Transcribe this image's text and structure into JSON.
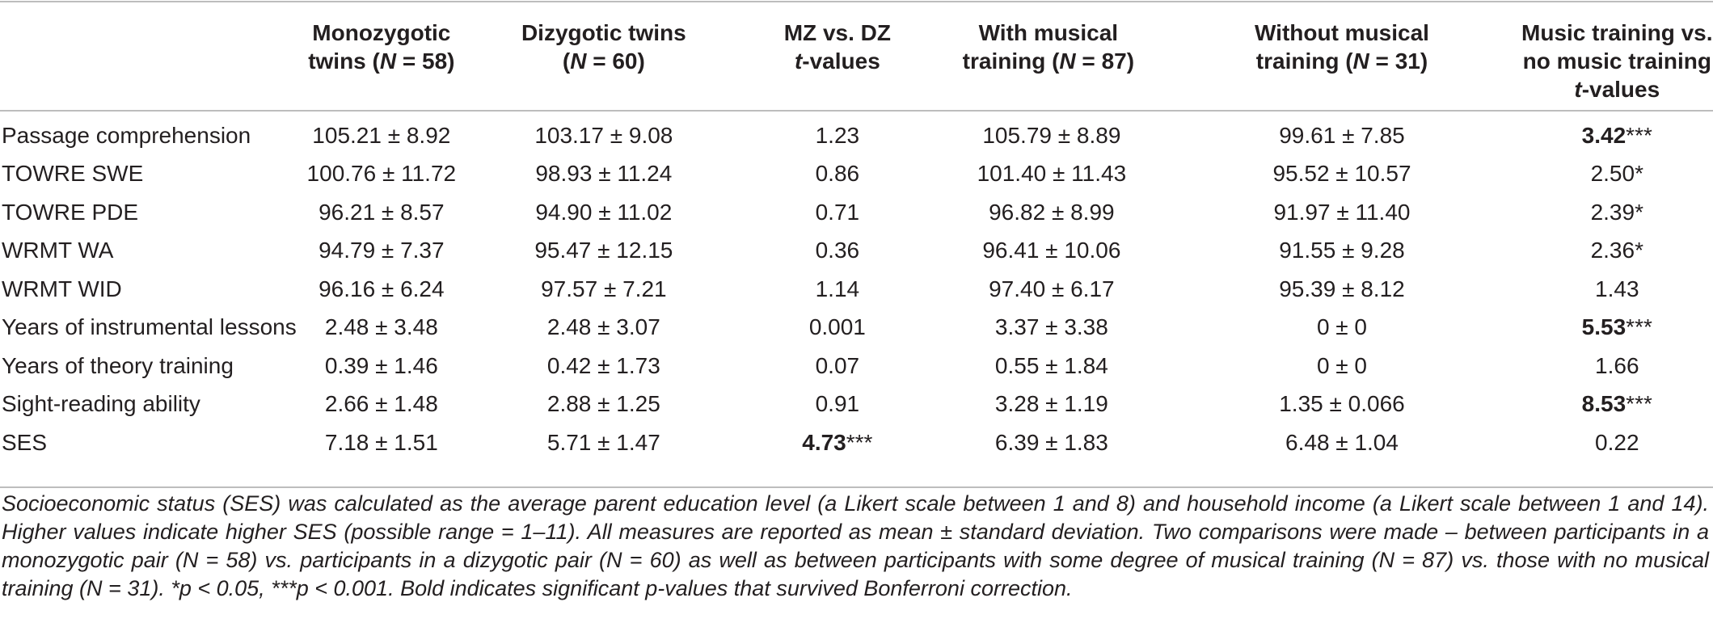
{
  "table": {
    "headers": {
      "label": "",
      "col1_a": "Monozygotic",
      "col1_b": "twins (",
      "col1_n": "N",
      "col1_c": " = 58)",
      "col2_a": "Dizygotic twins",
      "col2_b": "(",
      "col2_n": "N",
      "col2_c": " = 60)",
      "col3_a": "MZ vs. DZ",
      "col3_t": "t",
      "col3_b": "-values",
      "col4_a": "With musical",
      "col4_b": "training (",
      "col4_n": "N",
      "col4_c": " = 87)",
      "col5_a": "Without musical",
      "col5_b": "training (",
      "col5_n": "N",
      "col5_c": " = 31)",
      "col6_a": "Music training vs.",
      "col6_b": "no music training",
      "col6_t": "t",
      "col6_c": "-values"
    },
    "rows": [
      {
        "label": "Passage comprehension",
        "mz": "105.21 ± 8.92",
        "dz": "103.17 ± 9.08",
        "mzdz_t": "1.23",
        "mzdz_stars": "",
        "with": "105.79 ± 8.89",
        "without": "99.61 ± 7.85",
        "music_t": "3.42",
        "music_stars": "***",
        "music_bold": true,
        "mzdz_bold": false
      },
      {
        "label": "TOWRE SWE",
        "mz": "100.76 ± 11.72",
        "dz": "98.93 ± 11.24",
        "mzdz_t": "0.86",
        "mzdz_stars": "",
        "with": "101.40 ± 11.43",
        "without": "95.52 ± 10.57",
        "music_t": "2.50",
        "music_stars": "*",
        "music_bold": false,
        "mzdz_bold": false
      },
      {
        "label": "TOWRE PDE",
        "mz": "96.21 ± 8.57",
        "dz": "94.90 ± 11.02",
        "mzdz_t": "0.71",
        "mzdz_stars": "",
        "with": "96.82 ± 8.99",
        "without": "91.97 ± 11.40",
        "music_t": "2.39",
        "music_stars": "*",
        "music_bold": false,
        "mzdz_bold": false
      },
      {
        "label": "WRMT WA",
        "mz": "94.79 ± 7.37",
        "dz": "95.47 ± 12.15",
        "mzdz_t": "0.36",
        "mzdz_stars": "",
        "with": "96.41 ± 10.06",
        "without": "91.55 ± 9.28",
        "music_t": "2.36",
        "music_stars": "*",
        "music_bold": false,
        "mzdz_bold": false
      },
      {
        "label": "WRMT WID",
        "mz": "96.16 ± 6.24",
        "dz": "97.57 ± 7.21",
        "mzdz_t": "1.14",
        "mzdz_stars": "",
        "with": "97.40 ± 6.17",
        "without": "95.39 ± 8.12",
        "music_t": "1.43",
        "music_stars": "",
        "music_bold": false,
        "mzdz_bold": false
      },
      {
        "label": "Years of instrumental lessons",
        "mz": "2.48 ± 3.48",
        "dz": "2.48 ± 3.07",
        "mzdz_t": "0.001",
        "mzdz_stars": "",
        "with": "3.37 ± 3.38",
        "without": "0 ± 0",
        "music_t": "5.53",
        "music_stars": "***",
        "music_bold": true,
        "mzdz_bold": false
      },
      {
        "label": "Years of theory training",
        "mz": "0.39 ± 1.46",
        "dz": "0.42 ± 1.73",
        "mzdz_t": "0.07",
        "mzdz_stars": "",
        "with": "0.55 ± 1.84",
        "without": "0 ± 0",
        "music_t": "1.66",
        "music_stars": "",
        "music_bold": false,
        "mzdz_bold": false
      },
      {
        "label": "Sight-reading ability",
        "mz": "2.66 ± 1.48",
        "dz": "2.88 ± 1.25",
        "mzdz_t": "0.91",
        "mzdz_stars": "",
        "with": "3.28 ± 1.19",
        "without": "1.35 ± 0.066",
        "music_t": "8.53",
        "music_stars": "***",
        "music_bold": true,
        "mzdz_bold": false
      },
      {
        "label": "SES",
        "mz": "7.18 ± 1.51",
        "dz": "5.71 ± 1.47",
        "mzdz_t": "4.73",
        "mzdz_stars": "***",
        "with": "6.39 ± 1.83",
        "without": "6.48 ± 1.04",
        "music_t": "0.22",
        "music_stars": "",
        "music_bold": false,
        "mzdz_bold": true
      }
    ]
  },
  "footnote": "Socioeconomic status (SES) was calculated as the average parent education level (a Likert scale between 1 and 8) and household income (a Likert scale between 1 and 14). Higher values indicate higher SES (possible range = 1–11). All measures are reported as mean ± standard deviation. Two comparisons were made – between participants in a monozygotic pair (N = 58) vs. participants in a dizygotic pair (N = 60) as well as between participants with some degree of musical training (N = 87) vs. those with no musical training (N = 31). *p < 0.05, ***p < 0.001. Bold indicates significant p-values that survived Bonferroni correction."
}
